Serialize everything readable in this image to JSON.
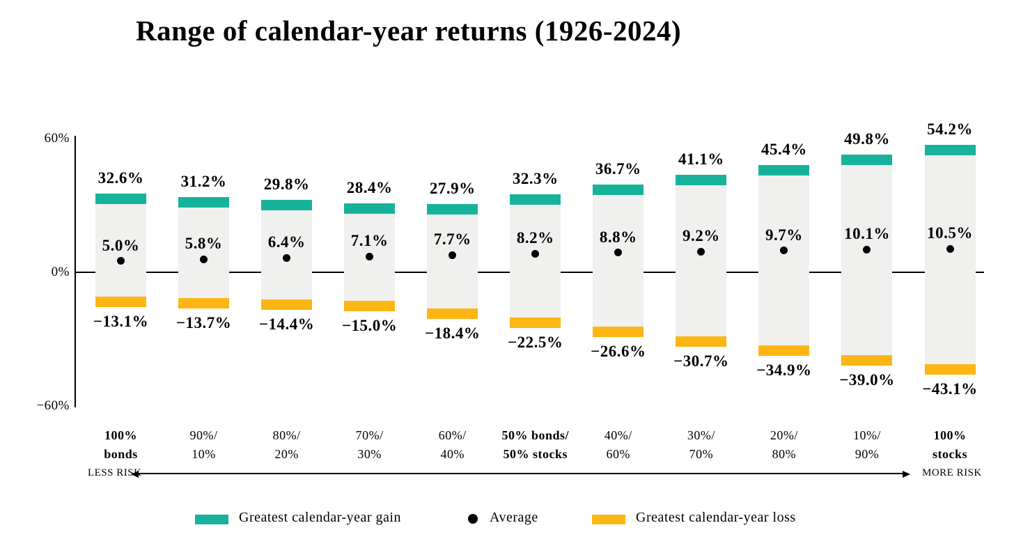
{
  "title": "Range of calendar-year returns (1926-2024)",
  "y_axis": {
    "ticks": [
      "60%",
      "0%",
      "−60%"
    ]
  },
  "risk_scale": {
    "less": "LESS RISK",
    "more": "MORE RISK"
  },
  "legend": [
    {
      "name": "greatest-gain",
      "swatch": "teal-rect",
      "label": "Greatest calendar-year gain"
    },
    {
      "name": "average",
      "swatch": "black-dot",
      "label": "Average"
    },
    {
      "name": "greatest-loss",
      "swatch": "yellow-rect",
      "label": "Greatest calendar-year loss"
    }
  ],
  "colors": {
    "gain": "#17b29b",
    "loss": "#fdb614",
    "bar_body": "#f0f0ef",
    "dot": "#000000",
    "axis": "#000000"
  },
  "chart_data": {
    "type": "bar",
    "subtype": "floating-range-bars",
    "title": "Range of calendar-year returns (1926-2024)",
    "ylabel": "",
    "xlabel": "",
    "ylim": [
      -60,
      60
    ],
    "y_tick_values": [
      60,
      0,
      -60
    ],
    "grid": false,
    "legend_position": "bottom",
    "categories": [
      "100% bonds",
      "90%/10%",
      "80%/20%",
      "70%/30%",
      "60%/40%",
      "50% bonds/50% stocks",
      "40%/60%",
      "30%/70%",
      "20%/80%",
      "10%/90%",
      "100% stocks"
    ],
    "series": [
      {
        "name": "Greatest calendar-year gain",
        "values": [
          32.6,
          31.2,
          29.8,
          28.4,
          27.9,
          32.3,
          36.7,
          41.1,
          45.4,
          49.8,
          54.2
        ]
      },
      {
        "name": "Average",
        "values": [
          5.0,
          5.8,
          6.4,
          7.1,
          7.7,
          8.2,
          8.8,
          9.2,
          9.7,
          10.1,
          10.5
        ]
      },
      {
        "name": "Greatest calendar-year loss",
        "values": [
          -13.1,
          -13.7,
          -14.4,
          -15.0,
          -18.4,
          -22.5,
          -26.6,
          -30.7,
          -34.9,
          -39.0,
          -43.1
        ]
      }
    ],
    "bars": [
      {
        "cat_line1": "100%",
        "cat_line2": "bonds",
        "bold": true,
        "gain": 32.6,
        "avg": 5.0,
        "loss": -13.1,
        "gain_label": "32.6%",
        "avg_label": "5.0%",
        "loss_label": "−13.1%"
      },
      {
        "cat_line1": "90%/",
        "cat_line2": "10%",
        "bold": false,
        "gain": 31.2,
        "avg": 5.8,
        "loss": -13.7,
        "gain_label": "31.2%",
        "avg_label": "5.8%",
        "loss_label": "−13.7%"
      },
      {
        "cat_line1": "80%/",
        "cat_line2": "20%",
        "bold": false,
        "gain": 29.8,
        "avg": 6.4,
        "loss": -14.4,
        "gain_label": "29.8%",
        "avg_label": "6.4%",
        "loss_label": "−14.4%"
      },
      {
        "cat_line1": "70%/",
        "cat_line2": "30%",
        "bold": false,
        "gain": 28.4,
        "avg": 7.1,
        "loss": -15.0,
        "gain_label": "28.4%",
        "avg_label": "7.1%",
        "loss_label": "−15.0%"
      },
      {
        "cat_line1": "60%/",
        "cat_line2": "40%",
        "bold": false,
        "gain": 27.9,
        "avg": 7.7,
        "loss": -18.4,
        "gain_label": "27.9%",
        "avg_label": "7.7%",
        "loss_label": "−18.4%"
      },
      {
        "cat_line1": "50% bonds/",
        "cat_line2": "50% stocks",
        "bold": true,
        "gain": 32.3,
        "avg": 8.2,
        "loss": -22.5,
        "gain_label": "32.3%",
        "avg_label": "8.2%",
        "loss_label": "−22.5%"
      },
      {
        "cat_line1": "40%/",
        "cat_line2": "60%",
        "bold": false,
        "gain": 36.7,
        "avg": 8.8,
        "loss": -26.6,
        "gain_label": "36.7%",
        "avg_label": "8.8%",
        "loss_label": "−26.6%"
      },
      {
        "cat_line1": "30%/",
        "cat_line2": "70%",
        "bold": false,
        "gain": 41.1,
        "avg": 9.2,
        "loss": -30.7,
        "gain_label": "41.1%",
        "avg_label": "9.2%",
        "loss_label": "−30.7%"
      },
      {
        "cat_line1": "20%/",
        "cat_line2": "80%",
        "bold": false,
        "gain": 45.4,
        "avg": 9.7,
        "loss": -34.9,
        "gain_label": "45.4%",
        "avg_label": "9.7%",
        "loss_label": "−34.9%"
      },
      {
        "cat_line1": "10%/",
        "cat_line2": "90%",
        "bold": false,
        "gain": 49.8,
        "avg": 10.1,
        "loss": -39.0,
        "gain_label": "49.8%",
        "avg_label": "10.1%",
        "loss_label": "−39.0%"
      },
      {
        "cat_line1": "100%",
        "cat_line2": "stocks",
        "bold": true,
        "gain": 54.2,
        "avg": 10.5,
        "loss": -43.1,
        "gain_label": "54.2%",
        "avg_label": "10.5%",
        "loss_label": "−43.1%"
      }
    ]
  }
}
